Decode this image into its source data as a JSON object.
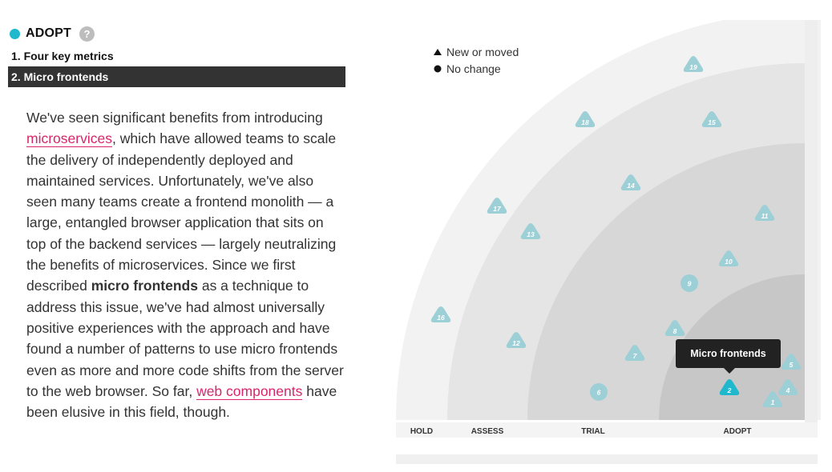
{
  "ring_header": {
    "label": "ADOPT",
    "help_icon": "question-icon",
    "help_glyph": "?",
    "accent": "#1fb8cc"
  },
  "items": [
    {
      "label": "1. Four key metrics"
    },
    {
      "label": "2. Micro frontends"
    }
  ],
  "description": {
    "t1": "We've seen significant benefits from introducing ",
    "link1": "microservices",
    "t2": ", which have allowed teams to scale the delivery of independently deployed and maintained services. Unfortunately, we've also seen many teams create a frontend monolith — a large, entangled browser application that sits on top of the backend services — largely neutralizing the benefits of microservices. Since we first described ",
    "bold": "micro frontends",
    "t3": " as a technique to address this issue, we've had almost universally positive experiences with the approach and have found a number of patterns to use micro frontends even as more and more code shifts from the server to the web browser. So far, ",
    "link2": "web components",
    "t4": " have been elusive in this field, though."
  },
  "legend": [
    {
      "label": "New or moved",
      "icon": "triangle-icon"
    },
    {
      "label": "No change",
      "icon": "circle-icon"
    }
  ],
  "rings": [
    "HOLD",
    "ASSESS",
    "TRIAL",
    "ADOPT"
  ],
  "blips": [
    {
      "id": "1",
      "shape": "triangle",
      "ring": "ADOPT"
    },
    {
      "id": "2",
      "shape": "triangle",
      "ring": "ADOPT",
      "selected": true
    },
    {
      "id": "4",
      "shape": "triangle",
      "ring": "ADOPT"
    },
    {
      "id": "5",
      "shape": "triangle",
      "ring": "ADOPT"
    },
    {
      "id": "6",
      "shape": "circle",
      "ring": "TRIAL"
    },
    {
      "id": "7",
      "shape": "triangle",
      "ring": "TRIAL"
    },
    {
      "id": "8",
      "shape": "triangle",
      "ring": "TRIAL"
    },
    {
      "id": "9",
      "shape": "circle",
      "ring": "TRIAL"
    },
    {
      "id": "10",
      "shape": "triangle",
      "ring": "TRIAL"
    },
    {
      "id": "11",
      "shape": "triangle",
      "ring": "TRIAL"
    },
    {
      "id": "12",
      "shape": "triangle",
      "ring": "ASSESS"
    },
    {
      "id": "13",
      "shape": "triangle",
      "ring": "ASSESS"
    },
    {
      "id": "14",
      "shape": "triangle",
      "ring": "ASSESS"
    },
    {
      "id": "15",
      "shape": "triangle",
      "ring": "HOLD"
    },
    {
      "id": "16",
      "shape": "triangle",
      "ring": "HOLD"
    },
    {
      "id": "17",
      "shape": "triangle",
      "ring": "HOLD"
    },
    {
      "id": "18",
      "shape": "triangle",
      "ring": "HOLD"
    },
    {
      "id": "19",
      "shape": "triangle",
      "ring": "HOLD"
    }
  ],
  "tooltip": "Micro frontends",
  "colors": {
    "ring_hold": "#f2f2f2",
    "ring_assess": "#e4e4e4",
    "ring_trial": "#d6d6d6",
    "ring_adopt": "#c6c6c6",
    "blip": "#9dcfd6",
    "blip_selected": "#1fb8cc",
    "tooltip_bg": "#222222"
  }
}
